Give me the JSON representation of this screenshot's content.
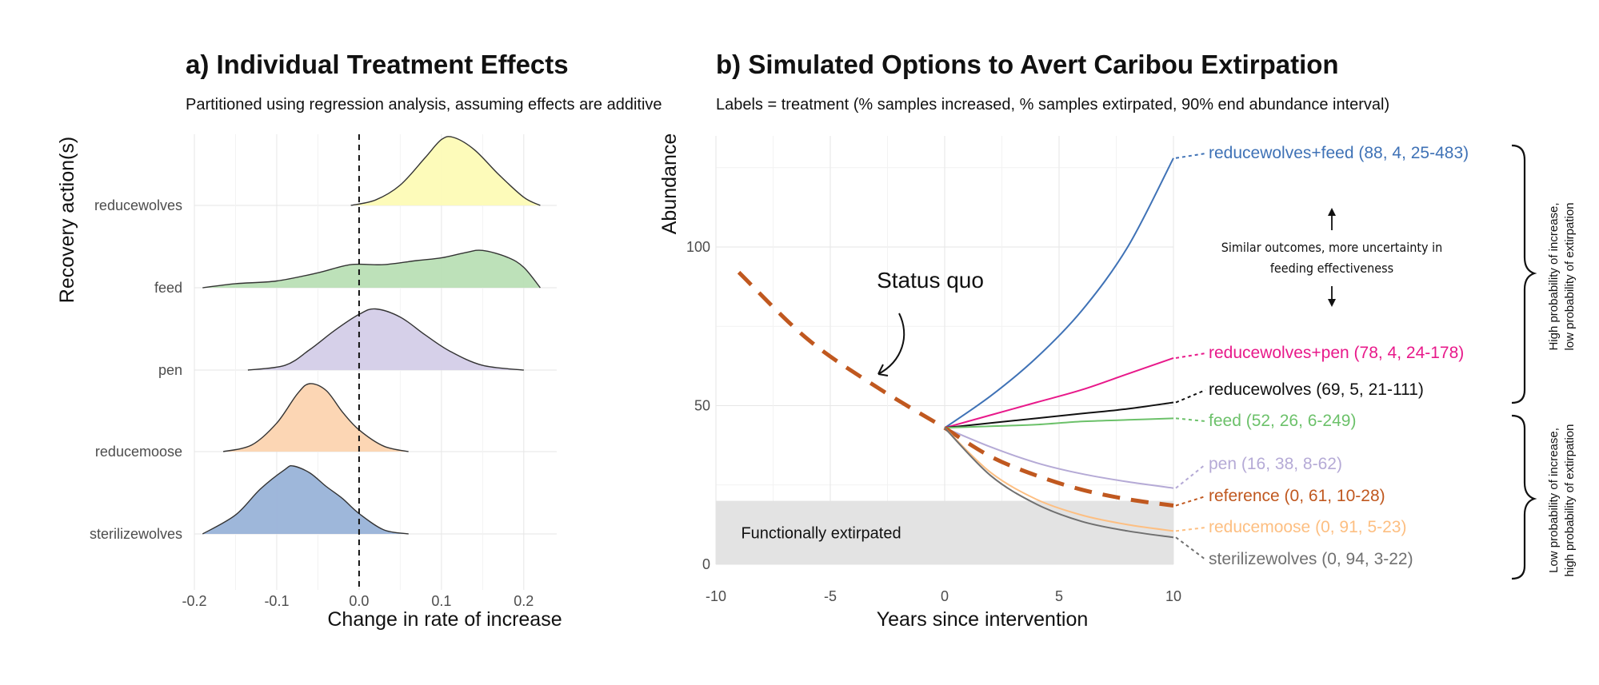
{
  "chart_data": [
    {
      "type": "ridgeline",
      "title": "a) Individual Treatment Effects",
      "subtitle": "Partitioned using regression analysis, assuming effects are additive",
      "xlabel": "Change in rate of increase",
      "ylabel": "Recovery action(s)",
      "xlim": [
        -0.2,
        0.24
      ],
      "xticks": [
        "-0.2",
        "-0.1",
        "0.0",
        "0.1",
        "0.2"
      ],
      "xtick_values": [
        -0.2,
        -0.1,
        0.0,
        0.1,
        0.2
      ],
      "reference_line_x": 0.0,
      "categories": [
        "reducewolves",
        "feed",
        "pen",
        "reducemoose",
        "sterilizewolves"
      ],
      "series": [
        {
          "name": "reducewolves",
          "color": "#fdfbb6",
          "x": [
            -0.01,
            0.02,
            0.05,
            0.08,
            0.1,
            0.115,
            0.14,
            0.17,
            0.2,
            0.22
          ],
          "density": [
            0.0,
            0.08,
            0.3,
            0.7,
            0.97,
            1.0,
            0.82,
            0.45,
            0.12,
            0.0
          ]
        },
        {
          "name": "feed",
          "color": "#b9dfb5",
          "x": [
            -0.19,
            -0.15,
            -0.1,
            -0.05,
            -0.01,
            0.03,
            0.07,
            0.1,
            0.13,
            0.15,
            0.18,
            0.2,
            0.22
          ],
          "density": [
            0.0,
            0.06,
            0.1,
            0.22,
            0.34,
            0.34,
            0.4,
            0.44,
            0.52,
            0.55,
            0.45,
            0.3,
            0.0
          ]
        },
        {
          "name": "pen",
          "color": "#d4cde8",
          "x": [
            -0.135,
            -0.09,
            -0.06,
            -0.03,
            0.0,
            0.02,
            0.05,
            0.08,
            0.11,
            0.15,
            0.2
          ],
          "density": [
            0.0,
            0.07,
            0.3,
            0.58,
            0.82,
            0.9,
            0.78,
            0.52,
            0.28,
            0.07,
            0.0
          ]
        },
        {
          "name": "reducemoose",
          "color": "#fcd4b0",
          "x": [
            -0.165,
            -0.13,
            -0.1,
            -0.075,
            -0.06,
            -0.04,
            -0.02,
            0.0,
            0.03,
            0.06
          ],
          "density": [
            0.0,
            0.1,
            0.42,
            0.85,
            1.0,
            0.9,
            0.58,
            0.32,
            0.08,
            0.0
          ]
        },
        {
          "name": "sterilizewolves",
          "color": "#99b3d8",
          "x": [
            -0.19,
            -0.15,
            -0.12,
            -0.09,
            -0.08,
            -0.06,
            -0.04,
            -0.02,
            0.0,
            0.03,
            0.06
          ],
          "density": [
            0.0,
            0.28,
            0.66,
            0.95,
            1.0,
            0.9,
            0.7,
            0.52,
            0.3,
            0.06,
            0.0
          ]
        }
      ]
    },
    {
      "type": "line",
      "title": "b) Simulated Options to Avert Caribou Extirpation",
      "subtitle": "Labels = treatment (% samples increased, % samples extirpated, 90% end abundance interval)",
      "xlabel": "Years since intervention",
      "ylabel": "Abundance",
      "xlim": [
        -10,
        10
      ],
      "ylim": [
        0,
        135
      ],
      "xticks": [
        "-10",
        "-5",
        "0",
        "5",
        "10"
      ],
      "xtick_values": [
        -10,
        -5,
        0,
        5,
        10
      ],
      "yticks": [
        "0",
        "50",
        "100"
      ],
      "ytick_values": [
        0,
        50,
        100
      ],
      "extirpation_band": {
        "ymin": 0,
        "ymax": 20,
        "label": "Functionally extirpated"
      },
      "status_quo": {
        "label": "Status quo",
        "color": "#c0581f",
        "x": [
          -9,
          -6,
          -3,
          0
        ],
        "y": [
          92,
          71,
          56,
          43
        ]
      },
      "series": [
        {
          "name": "reducewolves+feed",
          "label": "reducewolves+feed (88, 4, 25-483)",
          "color": "#3f72b6",
          "x": [
            0,
            2,
            4,
            6,
            8,
            10
          ],
          "y": [
            43,
            53,
            65,
            80,
            100,
            128
          ]
        },
        {
          "name": "reducewolves+pen",
          "label": "reducewolves+pen (78, 4, 24-178)",
          "color": "#e8198a",
          "x": [
            0,
            2,
            4,
            6,
            8,
            10
          ],
          "y": [
            43,
            47,
            51,
            55,
            60,
            65
          ]
        },
        {
          "name": "reducewolves",
          "label": "reducewolves (69, 5, 21-111)",
          "color": "#111111",
          "x": [
            0,
            2,
            4,
            6,
            8,
            10
          ],
          "y": [
            43,
            44.5,
            46,
            47.5,
            49,
            51
          ]
        },
        {
          "name": "feed",
          "label": "feed (52, 26, 6-249)",
          "color": "#6cc16a",
          "x": [
            0,
            2,
            4,
            6,
            8,
            10
          ],
          "y": [
            43,
            43.5,
            44,
            45,
            45.5,
            46
          ]
        },
        {
          "name": "pen",
          "label": "pen (16, 38, 8-62)",
          "color": "#b5aad6",
          "x": [
            0,
            2,
            4,
            6,
            8,
            10
          ],
          "y": [
            43,
            37,
            32,
            28.5,
            26,
            24
          ]
        },
        {
          "name": "reference",
          "label": "reference (0, 61, 10-28)",
          "color": "#c0581f",
          "dashed": true,
          "x": [
            0,
            2,
            4,
            6,
            8,
            10
          ],
          "y": [
            43,
            34,
            28,
            23.5,
            20.5,
            18.5
          ]
        },
        {
          "name": "reducemoose",
          "label": "reducemoose (0, 91, 5-23)",
          "color": "#fdbf82",
          "x": [
            0,
            2,
            4,
            6,
            8,
            10
          ],
          "y": [
            43,
            29,
            20.5,
            15.5,
            12.5,
            10.5
          ]
        },
        {
          "name": "sterilizewolves",
          "label": "sterilizewolves (0, 94, 3-22)",
          "color": "#707070",
          "x": [
            0,
            2,
            4,
            6,
            8,
            10
          ],
          "y": [
            43,
            28,
            19,
            13.5,
            10.5,
            8.5
          ]
        }
      ],
      "annotations": {
        "similar_line1": "Similar outcomes, more uncertainty in",
        "similar_line2": "feeding effectiveness",
        "bracket_top_line1": "High probability of increase,",
        "bracket_top_line2": "low probability of extirpation",
        "bracket_bottom_line1": "Low probability of increase,",
        "bracket_bottom_line2": "high probability of extirpation"
      }
    }
  ]
}
